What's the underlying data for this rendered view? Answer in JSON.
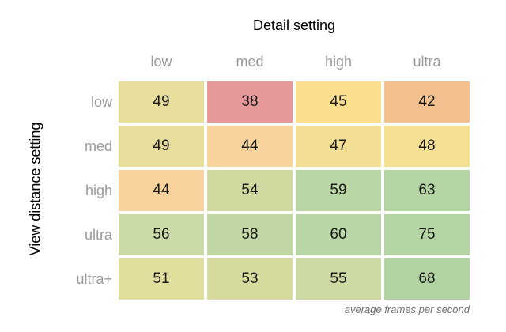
{
  "chart_data": {
    "type": "heatmap",
    "title": "Detail setting",
    "ylabel": "View distance setting",
    "footnote": "average frames per second",
    "x_categories": [
      "low",
      "med",
      "high",
      "ultra"
    ],
    "y_categories": [
      "low",
      "med",
      "high",
      "ultra",
      "ultra+"
    ],
    "values": [
      [
        49,
        38,
        45,
        42
      ],
      [
        49,
        44,
        47,
        48
      ],
      [
        44,
        54,
        59,
        63
      ],
      [
        56,
        58,
        60,
        75
      ],
      [
        51,
        53,
        55,
        68
      ]
    ],
    "cell_colors": [
      [
        "#e7de9b",
        "#e7989a",
        "#fbdf8e",
        "#f3c08f"
      ],
      [
        "#e7de9b",
        "#fad29e",
        "#f3df93",
        "#f4df92"
      ],
      [
        "#fad29e",
        "#cfd9a0",
        "#bad6a4",
        "#b4d5a3"
      ],
      [
        "#c9daa4",
        "#c0d7a4",
        "#b8d5a5",
        "#b4d5a3"
      ],
      [
        "#e1dd9c",
        "#d7da9e",
        "#ccd9a2",
        "#b1d3a2"
      ]
    ],
    "value_min": 38,
    "value_max": 75,
    "colorscale": {
      "low": "#e7989a",
      "mid": "#fbdf8e",
      "high": "#b1d3a2"
    },
    "legend_position": "none",
    "grid": "off"
  },
  "styles": {
    "background": "#ffffff",
    "title_color": "#000000",
    "axis_label_color": "#000000",
    "tick_label_color": "#9b9b9b",
    "value_text_color": "#1a1a1a",
    "footnote_color": "#6e6e6e"
  }
}
